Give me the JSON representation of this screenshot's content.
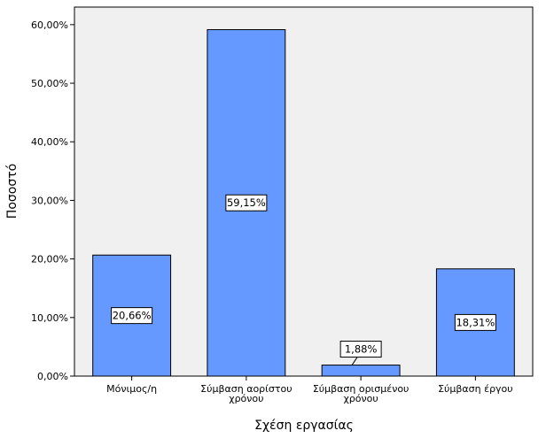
{
  "chart_data": {
    "type": "bar",
    "categories": [
      [
        "Μόνιμος/η"
      ],
      [
        "Σύμβαση αορίστου",
        "χρόνου"
      ],
      [
        "Σύμβαση ορισμένου",
        "χρόνου"
      ],
      [
        "Σύμβαση έργου"
      ]
    ],
    "values": [
      20.66,
      59.15,
      1.88,
      18.31
    ],
    "data_labels": [
      "20,66%",
      "59,15%",
      "1,88%",
      "18,31%"
    ],
    "title": "",
    "xlabel": "Σχέση εργασίας",
    "ylabel": "Ποσοστό",
    "ylim": [
      0,
      63
    ],
    "yticks": [
      0,
      10,
      20,
      30,
      40,
      50,
      60
    ],
    "ytick_labels": [
      "0,00%",
      "10,00%",
      "20,00%",
      "30,00%",
      "40,00%",
      "50,00%",
      "60,00%"
    ],
    "grid": false,
    "legend": "none",
    "colors": {
      "bar": "#6699ff",
      "plot_bg": "#f0f0f0",
      "axis": "#000000"
    }
  }
}
